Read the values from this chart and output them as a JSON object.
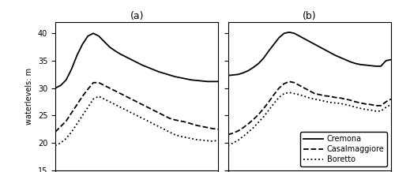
{
  "title_a": "(a)",
  "title_b": "(b)",
  "ylabel": "waterlevels: m",
  "ylim": [
    15,
    42
  ],
  "yticks": [
    15,
    20,
    25,
    30,
    35,
    40
  ],
  "legend_labels": [
    "Cremona",
    "Casalmaggiore",
    "Boretto"
  ],
  "background_color": "#ffffff",
  "line_color": "#000000",
  "a_cremona_x": [
    0,
    0.5,
    1,
    1.5,
    2,
    2.5,
    3,
    3.5,
    4,
    4.5,
    5,
    5.5,
    6,
    6.5,
    7,
    7.5,
    8,
    8.5,
    9,
    9.5,
    10,
    10.5,
    11,
    11.5,
    12,
    12.5,
    13,
    13.5,
    14,
    14.5,
    15
  ],
  "a_cremona_y": [
    30,
    30.5,
    31.5,
    33.5,
    36,
    38,
    39.5,
    40,
    39.5,
    38.5,
    37.5,
    36.8,
    36.2,
    35.7,
    35.2,
    34.7,
    34.2,
    33.8,
    33.4,
    33.0,
    32.7,
    32.4,
    32.1,
    31.9,
    31.7,
    31.5,
    31.4,
    31.3,
    31.2,
    31.2,
    31.2
  ],
  "a_casalmaggiore_x": [
    0,
    0.5,
    1,
    1.5,
    2,
    2.5,
    3,
    3.5,
    4,
    4.5,
    5,
    5.5,
    6,
    6.5,
    7,
    7.5,
    8,
    8.5,
    9,
    9.5,
    10,
    10.5,
    11,
    11.5,
    12,
    12.5,
    13,
    13.5,
    14,
    14.5,
    15
  ],
  "a_casalmaggiore_y": [
    22,
    23,
    24,
    25.5,
    27,
    28.5,
    29.8,
    31,
    31,
    30.5,
    30,
    29.5,
    29,
    28.5,
    28,
    27.5,
    27,
    26.5,
    26,
    25.5,
    25,
    24.5,
    24.2,
    24.0,
    23.8,
    23.5,
    23.2,
    23.0,
    22.8,
    22.6,
    22.5
  ],
  "a_boretto_x": [
    0,
    0.5,
    1,
    1.5,
    2,
    2.5,
    3,
    3.5,
    4,
    4.5,
    5,
    5.5,
    6,
    6.5,
    7,
    7.5,
    8,
    8.5,
    9,
    9.5,
    10,
    10.5,
    11,
    11.5,
    12,
    12.5,
    13,
    13.5,
    14,
    14.5,
    15
  ],
  "a_boretto_y": [
    19.5,
    20,
    20.8,
    22,
    23.5,
    25,
    26.5,
    28,
    28.5,
    28,
    27.5,
    27,
    26.5,
    26,
    25.5,
    25,
    24.5,
    24,
    23.5,
    23,
    22.5,
    22,
    21.5,
    21.2,
    21,
    20.8,
    20.6,
    20.5,
    20.4,
    20.3,
    20.5
  ],
  "b_cremona_x": [
    0,
    0.5,
    1,
    1.5,
    2,
    2.5,
    3,
    3.5,
    4,
    4.5,
    5,
    5.5,
    6,
    6.5,
    7,
    7.5,
    8,
    8.5,
    9,
    9.5,
    10,
    10.5,
    11,
    11.5,
    12,
    12.5,
    13,
    13.5,
    14,
    14.5,
    15,
    15.5,
    16
  ],
  "b_cremona_y": [
    32.3,
    32.4,
    32.5,
    32.8,
    33.2,
    33.8,
    34.5,
    35.5,
    36.8,
    38,
    39.2,
    40,
    40.2,
    40,
    39.5,
    39,
    38.5,
    38,
    37.5,
    37,
    36.5,
    36,
    35.6,
    35.2,
    34.8,
    34.5,
    34.3,
    34.2,
    34.1,
    34.0,
    34.0,
    35.0,
    35.2
  ],
  "b_casalmaggiore_x": [
    0,
    0.5,
    1,
    1.5,
    2,
    2.5,
    3,
    3.5,
    4,
    4.5,
    5,
    5.5,
    6,
    6.5,
    7,
    7.5,
    8,
    8.5,
    9,
    9.5,
    10,
    10.5,
    11,
    11.5,
    12,
    12.5,
    13,
    13.5,
    14,
    14.5,
    15,
    15.5,
    16
  ],
  "b_casalmaggiore_y": [
    21.5,
    21.8,
    22.2,
    22.8,
    23.5,
    24.3,
    25.2,
    26.3,
    27.5,
    28.8,
    30,
    30.8,
    31.2,
    31.0,
    30.5,
    30.0,
    29.5,
    29.0,
    28.8,
    28.6,
    28.5,
    28.3,
    28.2,
    28.0,
    27.8,
    27.5,
    27.3,
    27.1,
    27.0,
    26.8,
    26.8,
    27.5,
    28.0
  ],
  "b_boretto_x": [
    0,
    0.5,
    1,
    1.5,
    2,
    2.5,
    3,
    3.5,
    4,
    4.5,
    5,
    5.5,
    6,
    6.5,
    7,
    7.5,
    8,
    8.5,
    9,
    9.5,
    10,
    10.5,
    11,
    11.5,
    12,
    12.5,
    13,
    13.5,
    14,
    14.5,
    15,
    15.5,
    16
  ],
  "b_boretto_y": [
    19.5,
    20,
    20.5,
    21.2,
    22,
    22.8,
    23.8,
    24.8,
    26,
    27.2,
    28.3,
    29.0,
    29.2,
    29.0,
    28.8,
    28.5,
    28.2,
    28.0,
    27.8,
    27.6,
    27.4,
    27.3,
    27.2,
    27.0,
    26.8,
    26.5,
    26.3,
    26.1,
    26.0,
    25.8,
    25.8,
    26.5,
    27.0
  ]
}
